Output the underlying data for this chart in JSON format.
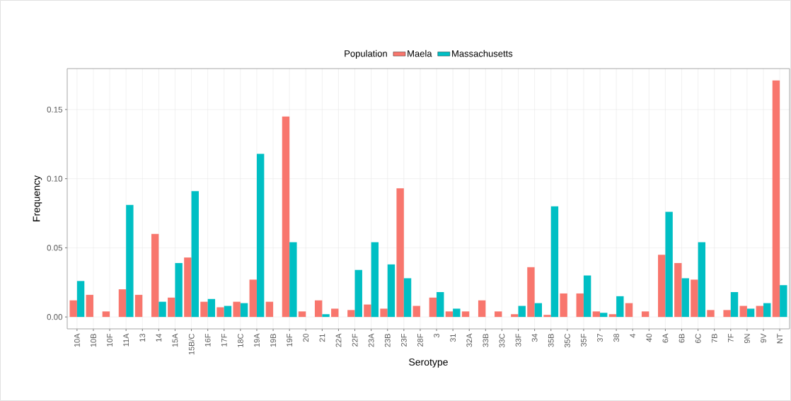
{
  "chart_data": {
    "type": "bar",
    "xlabel": "Serotype",
    "ylabel": "Frequency",
    "legend_title": "Population",
    "legend": "top",
    "grid": true,
    "categories": [
      "10A",
      "10B",
      "10F",
      "11A",
      "13",
      "14",
      "15A",
      "15B/C",
      "16F",
      "17F",
      "18C",
      "19A",
      "19B",
      "19F",
      "20",
      "21",
      "22A",
      "22F",
      "23A",
      "23B",
      "23F",
      "28F",
      "3",
      "31",
      "32A",
      "33B",
      "33C",
      "33F",
      "34",
      "35B",
      "35C",
      "35F",
      "37",
      "38",
      "4",
      "40",
      "6A",
      "6B",
      "6C",
      "7B",
      "7F",
      "9N",
      "9V",
      "NT"
    ],
    "series": [
      {
        "name": "Maela",
        "color": "#f8766d",
        "values": [
          0.012,
          0.016,
          0.004,
          0.02,
          0.016,
          0.06,
          0.014,
          0.043,
          0.011,
          0.007,
          0.011,
          0.027,
          0.011,
          0.145,
          0.004,
          0.012,
          0.006,
          0.005,
          0.009,
          0.006,
          0.093,
          0.008,
          0.014,
          0.004,
          0.004,
          0.012,
          0.004,
          0.002,
          0.036,
          0.0015,
          0.017,
          0.017,
          0.004,
          0.002,
          0.01,
          0.004,
          0.045,
          0.039,
          0.027,
          0.005,
          0.005,
          0.008,
          0.008,
          0.171
        ]
      },
      {
        "name": "Massachusetts",
        "color": "#00bfc4",
        "values": [
          0.026,
          0,
          0,
          0.081,
          0,
          0.011,
          0.039,
          0.091,
          0.013,
          0.008,
          0.01,
          0.118,
          0,
          0.054,
          0,
          0.002,
          0,
          0.034,
          0.054,
          0.038,
          0.028,
          0,
          0.018,
          0.006,
          0,
          0,
          0,
          0.008,
          0.01,
          0.08,
          0,
          0.03,
          0.003,
          0.015,
          0,
          0,
          0.076,
          0.028,
          0.054,
          0,
          0.018,
          0.006,
          0.01,
          0.023
        ]
      }
    ],
    "ylim": [
      -0.0086,
      0.1796
    ],
    "yticks": [
      {
        "value": 0,
        "label": "0.00"
      },
      {
        "value": 0.05,
        "label": "0.05"
      },
      {
        "value": 0.1,
        "label": "0.10"
      },
      {
        "value": 0.15,
        "label": "0.15"
      }
    ]
  }
}
